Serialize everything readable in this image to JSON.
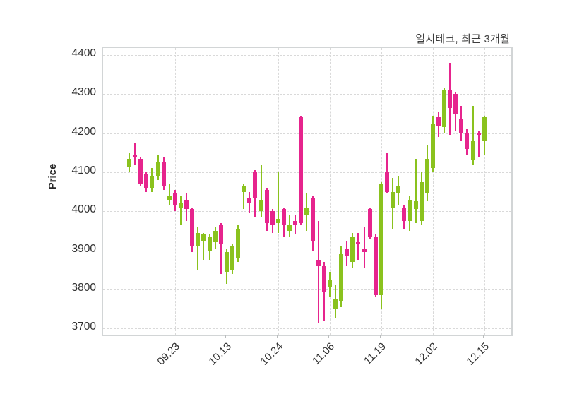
{
  "title": "일지테크, 최근 3개월",
  "colors": {
    "up": "#8ac21e",
    "down": "#e6248d",
    "grid": "#d9d9d9",
    "frame": "#d2d5d6",
    "text": "#2e2e2e"
  },
  "chart_data": {
    "type": "candlestick",
    "title": "일지테크, 최근 3개월",
    "xlabel": "",
    "ylabel": "Price",
    "ylim": [
      3684,
      4418
    ],
    "grid": true,
    "legend": false,
    "y_ticks": [
      4400,
      4300,
      4200,
      4100,
      4000,
      3900,
      3800,
      3700
    ],
    "x_tick_labels": [
      "09.23",
      "10.13",
      "10.24",
      "11.06",
      "11.19",
      "12.02",
      "12.15"
    ],
    "x_tick_candle_indices": [
      8,
      17,
      26,
      35,
      44,
      53,
      62
    ],
    "candles_format": [
      "open",
      "high",
      "low",
      "close"
    ],
    "candles": [
      [
        4115,
        4150,
        4100,
        4135
      ],
      [
        4145,
        4175,
        4120,
        4140
      ],
      [
        4135,
        4140,
        4065,
        4070
      ],
      [
        4095,
        4100,
        4050,
        4060
      ],
      [
        4060,
        4110,
        4050,
        4090
      ],
      [
        4090,
        4145,
        4080,
        4125
      ],
      [
        4125,
        4140,
        4055,
        4065
      ],
      [
        4030,
        4070,
        4015,
        4040
      ],
      [
        4045,
        4055,
        4000,
        4015
      ],
      [
        4010,
        4040,
        3965,
        4020
      ],
      [
        4030,
        4045,
        3975,
        4005
      ],
      [
        4005,
        4010,
        3895,
        3910
      ],
      [
        3910,
        3960,
        3850,
        3945
      ],
      [
        3925,
        3945,
        3875,
        3940
      ],
      [
        3900,
        3940,
        3875,
        3935
      ],
      [
        3920,
        3960,
        3905,
        3950
      ],
      [
        3965,
        3970,
        3840,
        3915
      ],
      [
        3845,
        3905,
        3815,
        3895
      ],
      [
        3850,
        3915,
        3840,
        3910
      ],
      [
        3880,
        3965,
        3870,
        3955
      ],
      [
        4050,
        4070,
        4005,
        4065
      ],
      [
        4035,
        4050,
        3995,
        4020
      ],
      [
        4100,
        4105,
        3985,
        4035
      ],
      [
        4000,
        4120,
        3985,
        4030
      ],
      [
        4055,
        4060,
        3950,
        3970
      ],
      [
        4000,
        4005,
        3945,
        3965
      ],
      [
        3970,
        4100,
        3945,
        3980
      ],
      [
        4005,
        4010,
        3935,
        3965
      ],
      [
        3950,
        3990,
        3935,
        3965
      ],
      [
        3975,
        3990,
        3940,
        3965
      ],
      [
        4240,
        4245,
        3965,
        3970
      ],
      [
        3990,
        4045,
        3950,
        4010
      ],
      [
        4035,
        4040,
        3900,
        3925
      ],
      [
        3875,
        3975,
        3715,
        3860
      ],
      [
        3860,
        3870,
        3720,
        3795
      ],
      [
        3805,
        3845,
        3780,
        3825
      ],
      [
        3750,
        3810,
        3725,
        3775
      ],
      [
        3770,
        3910,
        3755,
        3890
      ],
      [
        3905,
        3925,
        3860,
        3885
      ],
      [
        3870,
        3945,
        3855,
        3935
      ],
      [
        3920,
        3945,
        3875,
        3915
      ],
      [
        3905,
        3960,
        3855,
        3895
      ],
      [
        4005,
        4010,
        3930,
        3935
      ],
      [
        3935,
        3940,
        3780,
        3785
      ],
      [
        3785,
        4075,
        3750,
        4070
      ],
      [
        4100,
        4150,
        4045,
        4050
      ],
      [
        4010,
        4085,
        3955,
        4050
      ],
      [
        4045,
        4090,
        4015,
        4065
      ],
      [
        4010,
        4015,
        3955,
        3975
      ],
      [
        3975,
        4040,
        3950,
        4030
      ],
      [
        4005,
        4135,
        3970,
        4025
      ],
      [
        3975,
        4100,
        3965,
        4075
      ],
      [
        4045,
        4170,
        4025,
        4135
      ],
      [
        4110,
        4245,
        4100,
        4225
      ],
      [
        4240,
        4255,
        4190,
        4220
      ],
      [
        4215,
        4315,
        4200,
        4310
      ],
      [
        4310,
        4380,
        4195,
        4265
      ],
      [
        4300,
        4305,
        4205,
        4250
      ],
      [
        4235,
        4270,
        4180,
        4200
      ],
      [
        4200,
        4210,
        4145,
        4160
      ],
      [
        4130,
        4270,
        4120,
        4180
      ],
      [
        4200,
        4205,
        4140,
        4195
      ],
      [
        4180,
        4245,
        4145,
        4240
      ]
    ]
  }
}
